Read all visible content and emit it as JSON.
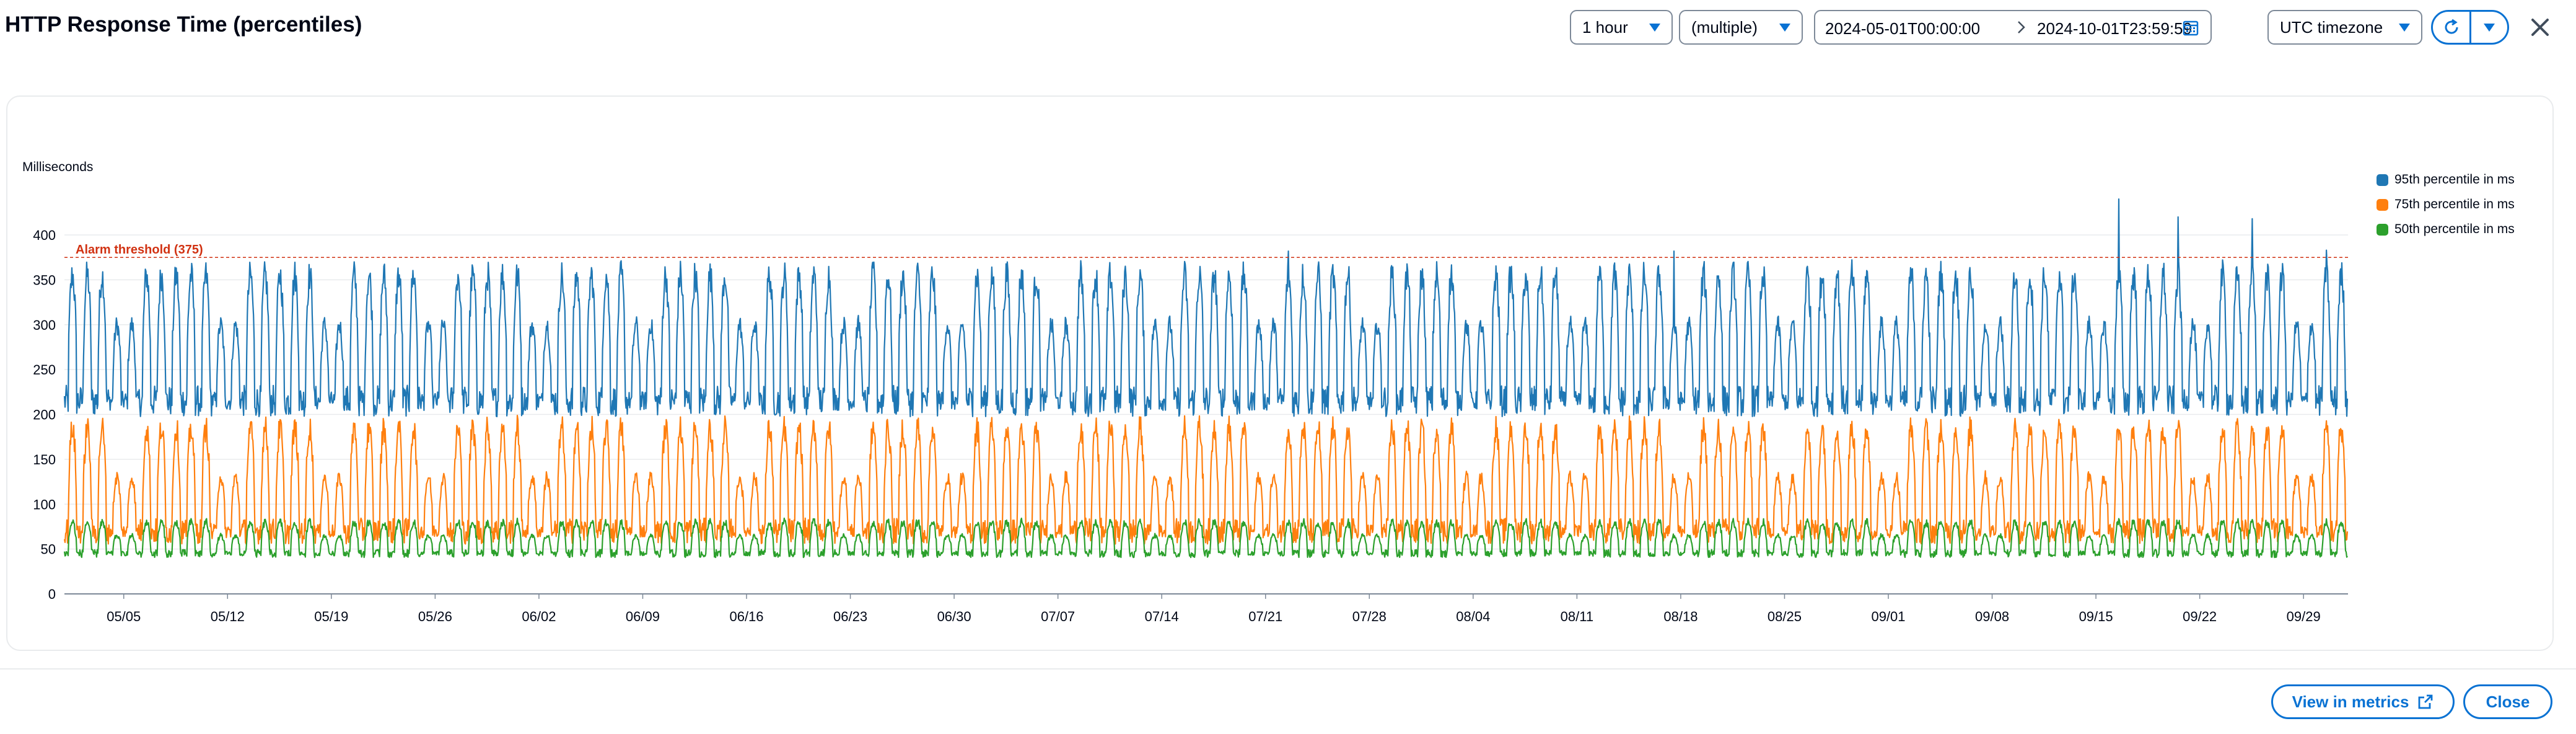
{
  "dialog": {
    "title": "HTTP Response Time (percentiles)"
  },
  "controls": {
    "period": "1 hour",
    "statistic": "(multiple)",
    "range_start": "2024-05-01T00:00:00",
    "range_end": "2024-10-01T23:59:59",
    "timezone": "UTC timezone"
  },
  "footer": {
    "view_in_metrics_label": "View in metrics",
    "close_label": "Close"
  },
  "icons": {
    "calendar": "calendar-icon",
    "refresh": "refresh-icon",
    "close": "close-icon",
    "external": "external-link-icon"
  },
  "colors": {
    "accent": "#0972d3",
    "p95": "#1f77b4",
    "p75": "#ff7f0e",
    "p50": "#2ca02c",
    "alarm": "#d13212"
  },
  "chart_data": {
    "type": "line",
    "ylabel": "Milliseconds",
    "xlabel": "",
    "ylim": [
      0,
      420
    ],
    "y_ticks": [
      0,
      50,
      100,
      150,
      200,
      250,
      300,
      350,
      400
    ],
    "x_range": [
      "2024-05-01",
      "2024-10-01"
    ],
    "x_tick_labels": [
      "05/05",
      "05/12",
      "05/19",
      "05/26",
      "06/02",
      "06/09",
      "06/16",
      "06/23",
      "06/30",
      "07/07",
      "07/14",
      "07/21",
      "07/28",
      "08/04",
      "08/11",
      "08/18",
      "08/25",
      "09/01",
      "09/08",
      "09/15",
      "09/22",
      "09/29"
    ],
    "x_tick_dates": [
      "2024-05-05",
      "2024-05-12",
      "2024-05-19",
      "2024-05-26",
      "2024-06-02",
      "2024-06-09",
      "2024-06-16",
      "2024-06-23",
      "2024-06-30",
      "2024-07-07",
      "2024-07-14",
      "2024-07-21",
      "2024-07-28",
      "2024-08-04",
      "2024-08-11",
      "2024-08-18",
      "2024-08-25",
      "2024-09-01",
      "2024-09-08",
      "2024-09-15",
      "2024-09-22",
      "2024-09-29"
    ],
    "threshold": {
      "label": "Alarm threshold (375)",
      "value": 375
    },
    "legend_position": "right",
    "grid": "horizontal",
    "series": [
      {
        "name": "95th percentile in ms",
        "color": "#1f77b4",
        "weekday_peak": 355,
        "weekend_peak": 300,
        "trough": 215,
        "spikes": [
          {
            "date": "2024-09-16",
            "value": 440
          },
          {
            "date": "2024-09-20",
            "value": 420
          },
          {
            "date": "2024-09-25",
            "value": 418
          },
          {
            "date": "2024-08-17",
            "value": 382
          },
          {
            "date": "2024-07-22",
            "value": 382
          },
          {
            "date": "2024-09-30",
            "value": 383
          }
        ]
      },
      {
        "name": "75th percentile in ms",
        "color": "#ff7f0e",
        "weekday_peak": 185,
        "weekend_peak": 130,
        "trough": 70
      },
      {
        "name": "50th percentile in ms",
        "color": "#2ca02c",
        "weekday_peak": 80,
        "weekend_peak": 65,
        "trough": 45
      }
    ]
  }
}
